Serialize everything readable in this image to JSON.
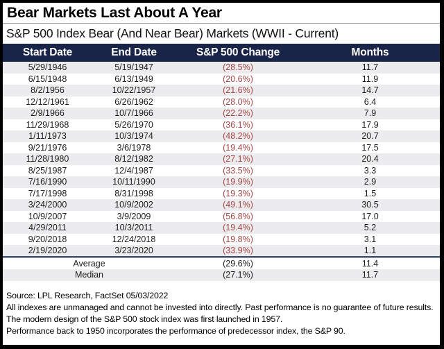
{
  "title": "Bear Markets Last About A Year",
  "subtitle": "S&P 500 Index Bear (And Near Bear) Markets (WWII - Current)",
  "colors": {
    "header_bg": "#182448",
    "negative_red": "#a64545",
    "row_stripe": "#ececee",
    "separator_dark": "#3f5070",
    "separator_light": "#9aa2b4",
    "border_black": "#000000"
  },
  "table": {
    "columns": [
      "Start Date",
      "End Date",
      "S&P 500 Change",
      "Months"
    ],
    "rows": [
      {
        "start_date": "5/29/1946",
        "end_date": "5/19/1947",
        "change": "(28.5%)",
        "months": "11.7"
      },
      {
        "start_date": "6/15/1948",
        "end_date": "6/13/1949",
        "change": "(20.6%)",
        "months": "11.9"
      },
      {
        "start_date": "8/2/1956",
        "end_date": "10/22/1957",
        "change": "(21.6%)",
        "months": "14.7"
      },
      {
        "start_date": "12/12/1961",
        "end_date": "6/26/1962",
        "change": "(28.0%)",
        "months": "6.4"
      },
      {
        "start_date": "2/9/1966",
        "end_date": "10/7/1966",
        "change": "(22.2%)",
        "months": "7.9"
      },
      {
        "start_date": "11/29/1968",
        "end_date": "5/26/1970",
        "change": "(36.1%)",
        "months": "17.9"
      },
      {
        "start_date": "1/11/1973",
        "end_date": "10/3/1974",
        "change": "(48.2%)",
        "months": "20.7"
      },
      {
        "start_date": "9/21/1976",
        "end_date": "3/6/1978",
        "change": "(19.4%)",
        "months": "17.5"
      },
      {
        "start_date": "11/28/1980",
        "end_date": "8/12/1982",
        "change": "(27.1%)",
        "months": "20.4"
      },
      {
        "start_date": "8/25/1987",
        "end_date": "12/4/1987",
        "change": "(33.5%)",
        "months": "3.3"
      },
      {
        "start_date": "7/16/1990",
        "end_date": "10/11/1990",
        "change": "(19.9%)",
        "months": "2.9"
      },
      {
        "start_date": "7/17/1998",
        "end_date": "8/31/1998",
        "change": "(19.3%)",
        "months": "1.5"
      },
      {
        "start_date": "3/24/2000",
        "end_date": "10/9/2002",
        "change": "(49.1%)",
        "months": "30.5"
      },
      {
        "start_date": "10/9/2007",
        "end_date": "3/9/2009",
        "change": "(56.8%)",
        "months": "17.0"
      },
      {
        "start_date": "4/29/2011",
        "end_date": "10/3/2011",
        "change": "(19.4%)",
        "months": "5.2"
      },
      {
        "start_date": "9/20/2018",
        "end_date": "12/24/2018",
        "change": "(19.8%)",
        "months": "3.1"
      },
      {
        "start_date": "2/19/2020",
        "end_date": "3/23/2020",
        "change": "(33.9%)",
        "months": "1.1"
      }
    ],
    "summary": [
      {
        "label": "Average",
        "change": "(29.6%)",
        "months": "11.4"
      },
      {
        "label": "Median",
        "change": "(27.1%)",
        "months": "11.7"
      }
    ]
  },
  "footer": {
    "source": "Source: LPL Research, FactSet 05/03/2022",
    "notes": [
      "All indexes are unmanaged and cannot be invested into directly. Past performance is no guarantee of future results.",
      "The modern design of the S&P 500 stock index was first launched in 1957.",
      "Performance back to 1950 incorporates the performance of predecessor index, the S&P 90."
    ]
  },
  "chart_data": {
    "type": "table",
    "title": "Bear Markets Last About A Year",
    "subtitle": "S&P 500 Index Bear (And Near Bear) Markets (WWII - Current)",
    "columns": [
      "Start Date",
      "End Date",
      "S&P 500 Change (%)",
      "Months"
    ],
    "rows": [
      [
        "5/29/1946",
        "5/19/1947",
        -28.5,
        11.7
      ],
      [
        "6/15/1948",
        "6/13/1949",
        -20.6,
        11.9
      ],
      [
        "8/2/1956",
        "10/22/1957",
        -21.6,
        14.7
      ],
      [
        "12/12/1961",
        "6/26/1962",
        -28.0,
        6.4
      ],
      [
        "2/9/1966",
        "10/7/1966",
        -22.2,
        7.9
      ],
      [
        "11/29/1968",
        "5/26/1970",
        -36.1,
        17.9
      ],
      [
        "1/11/1973",
        "10/3/1974",
        -48.2,
        20.7
      ],
      [
        "9/21/1976",
        "3/6/1978",
        -19.4,
        17.5
      ],
      [
        "11/28/1980",
        "8/12/1982",
        -27.1,
        20.4
      ],
      [
        "8/25/1987",
        "12/4/1987",
        -33.5,
        3.3
      ],
      [
        "7/16/1990",
        "10/11/1990",
        -19.9,
        2.9
      ],
      [
        "7/17/1998",
        "8/31/1998",
        -19.3,
        1.5
      ],
      [
        "3/24/2000",
        "10/9/2002",
        -49.1,
        30.5
      ],
      [
        "10/9/2007",
        "3/9/2009",
        -56.8,
        17.0
      ],
      [
        "4/29/2011",
        "10/3/2011",
        -19.4,
        5.2
      ],
      [
        "9/20/2018",
        "12/24/2018",
        -19.8,
        3.1
      ],
      [
        "2/19/2020",
        "3/23/2020",
        -33.9,
        1.1
      ]
    ],
    "summary": {
      "average_change_pct": -29.6,
      "average_months": 11.4,
      "median_change_pct": -27.1,
      "median_months": 11.7
    }
  }
}
